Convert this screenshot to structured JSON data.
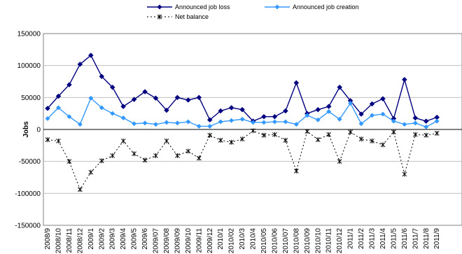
{
  "chart_data": {
    "type": "line",
    "title": "",
    "xlabel": "",
    "ylabel": "Jobs",
    "ylim": [
      -150000,
      150000
    ],
    "yticks": [
      150000,
      100000,
      50000,
      0,
      -50000,
      -100000,
      -150000
    ],
    "grid": "horizontal",
    "legend_position": "top",
    "categories": [
      "2008/9",
      "2008/10",
      "2008/11",
      "2008/12",
      "2009/1",
      "2009/2",
      "2009/3",
      "2009/4",
      "2009/5",
      "2009/6",
      "2009/07",
      "2009/08",
      "2009/09",
      "2009/10",
      "2009/11",
      "2009/12",
      "2010/1",
      "2010/02",
      "2010/3",
      "2010/4",
      "2010/05",
      "2010/06",
      "2010/07",
      "2010/08",
      "2010/09",
      "2010/10",
      "2010/11",
      "2010/12",
      "2011/1",
      "2011/2",
      "2011/3",
      "2011/4",
      "2011/5",
      "2011/6",
      "2011/7",
      "2011/8",
      "2011/9"
    ],
    "series": [
      {
        "name": "Announced job loss",
        "color": "#000080",
        "values": [
          33000,
          52000,
          70000,
          102000,
          116000,
          83000,
          66000,
          36000,
          47000,
          59000,
          49000,
          30000,
          50000,
          46000,
          50000,
          15000,
          29000,
          34000,
          31000,
          13000,
          20000,
          20000,
          29000,
          73000,
          25000,
          31000,
          36000,
          66000,
          45000,
          24000,
          40000,
          48000,
          17000,
          78000,
          18000,
          13000,
          19000
        ]
      },
      {
        "name": "Announced job creation",
        "color": "#3399FF",
        "values": [
          17000,
          34000,
          20000,
          8000,
          49000,
          34000,
          25000,
          18000,
          9000,
          10000,
          8000,
          11000,
          10000,
          12000,
          5000,
          5000,
          12000,
          14000,
          16000,
          11000,
          11000,
          12000,
          12000,
          8000,
          22000,
          15000,
          28000,
          16000,
          41000,
          9000,
          22000,
          24000,
          13000,
          8000,
          10000,
          4000,
          13000
        ]
      },
      {
        "name": "Net balance",
        "color": "#000000",
        "values": [
          -16000,
          -18000,
          -50000,
          -94000,
          -67000,
          -49000,
          -41000,
          -18000,
          -38000,
          -48000,
          -41000,
          -18000,
          -41000,
          -34000,
          -45000,
          -9000,
          -17000,
          -20000,
          -15000,
          -2000,
          -9000,
          -8000,
          -17000,
          -65000,
          -3000,
          -16000,
          -8000,
          -50000,
          -4000,
          -15000,
          -18000,
          -24000,
          -4000,
          -70000,
          -8000,
          -9000,
          -6000
        ]
      }
    ]
  }
}
